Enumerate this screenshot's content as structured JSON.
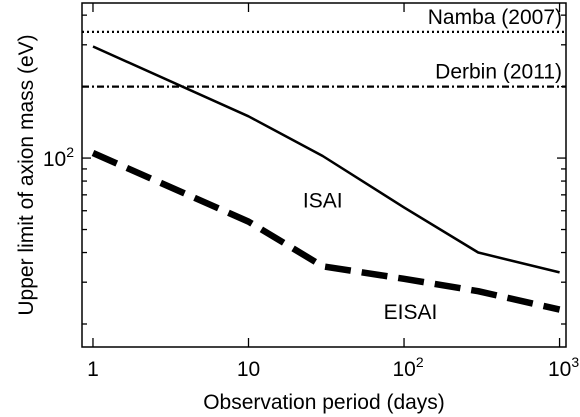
{
  "chart_data": {
    "type": "line",
    "xlabel": "Observation period (days)",
    "ylabel": "Upper limit of axion mass (eV)",
    "x_scale": "log",
    "y_scale": "log",
    "xlim": [
      0.85,
      1100
    ],
    "ylim": [
      16,
      450
    ],
    "grid": false,
    "x_ticks": [
      {
        "base": "1",
        "exp": ""
      },
      {
        "base": "10",
        "exp": ""
      },
      {
        "base": "10",
        "exp": "2"
      },
      {
        "base": "10",
        "exp": "3"
      }
    ],
    "y_ticks": [
      {
        "base": "10",
        "exp": "2"
      }
    ],
    "series": [
      {
        "name": "ISAI",
        "style": "solid",
        "x": [
          1,
          10,
          30,
          100,
          300,
          1000
        ],
        "y": [
          295,
          150,
          102,
          62,
          40,
          33
        ]
      },
      {
        "name": "EISAI",
        "style": "thick-dashed",
        "x": [
          1,
          10,
          30,
          100,
          300,
          1000
        ],
        "y": [
          105,
          54,
          35,
          31,
          27.5,
          23
        ]
      }
    ],
    "reference_lines": [
      {
        "label": "Namba (2007)",
        "y": 340,
        "style": "dotted"
      },
      {
        "label": "Derbin (2011)",
        "y": 200,
        "style": "dash-dot"
      }
    ]
  }
}
